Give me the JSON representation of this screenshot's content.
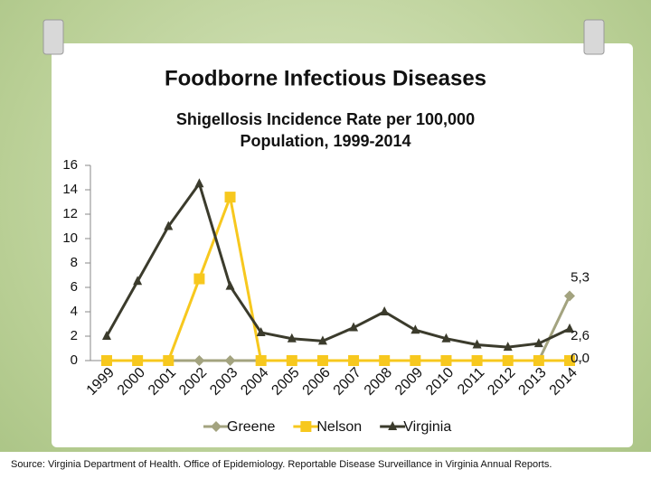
{
  "chart_data": {
    "type": "line",
    "title": "Foodborne Infectious Diseases",
    "subtitle": [
      "Shigellosis Incidence Rate per 100,000",
      "Population, 1999-2014"
    ],
    "categories": [
      "1999",
      "2000",
      "2001",
      "2002",
      "2003",
      "2004",
      "2005",
      "2006",
      "2007",
      "2008",
      "2009",
      "2010",
      "2011",
      "2012",
      "2013",
      "2014"
    ],
    "series": [
      {
        "name": "Greene",
        "color": "#a3a37f",
        "marker": "diamond",
        "values": [
          0,
          0,
          0,
          0,
          0,
          0,
          0,
          0,
          0,
          0,
          0,
          0,
          0,
          0,
          0,
          5.3
        ],
        "value_labels": [
          null,
          null,
          null,
          null,
          null,
          null,
          null,
          null,
          null,
          null,
          null,
          null,
          null,
          null,
          null,
          "5,3"
        ]
      },
      {
        "name": "Nelson",
        "color": "#f7c81e",
        "marker": "square",
        "values": [
          0,
          0,
          0,
          6.7,
          13.4,
          0,
          0,
          0,
          0,
          0,
          0,
          0,
          0,
          0,
          0,
          0
        ],
        "value_labels": [
          null,
          null,
          null,
          null,
          null,
          null,
          null,
          null,
          null,
          null,
          null,
          null,
          null,
          null,
          null,
          "0,0"
        ]
      },
      {
        "name": "Virginia",
        "color": "#3b3b2c",
        "marker": "triangle",
        "values": [
          2.0,
          6.5,
          11.0,
          14.5,
          6.1,
          2.3,
          1.8,
          1.6,
          2.7,
          4.0,
          2.5,
          1.8,
          1.3,
          1.1,
          1.4,
          2.6
        ],
        "value_labels": [
          null,
          null,
          null,
          null,
          null,
          null,
          null,
          null,
          null,
          null,
          null,
          null,
          null,
          null,
          null,
          "2,6"
        ]
      }
    ],
    "ylim": [
      0,
      16
    ],
    "yticks": [
      0,
      2,
      4,
      6,
      8,
      10,
      12,
      14,
      16
    ],
    "grid": false,
    "legend": "bottom"
  },
  "footer": {
    "source": "Source: Virginia Department of Health. Office of Epidemiology. Reportable Disease Surveillance in Virginia Annual Reports."
  }
}
